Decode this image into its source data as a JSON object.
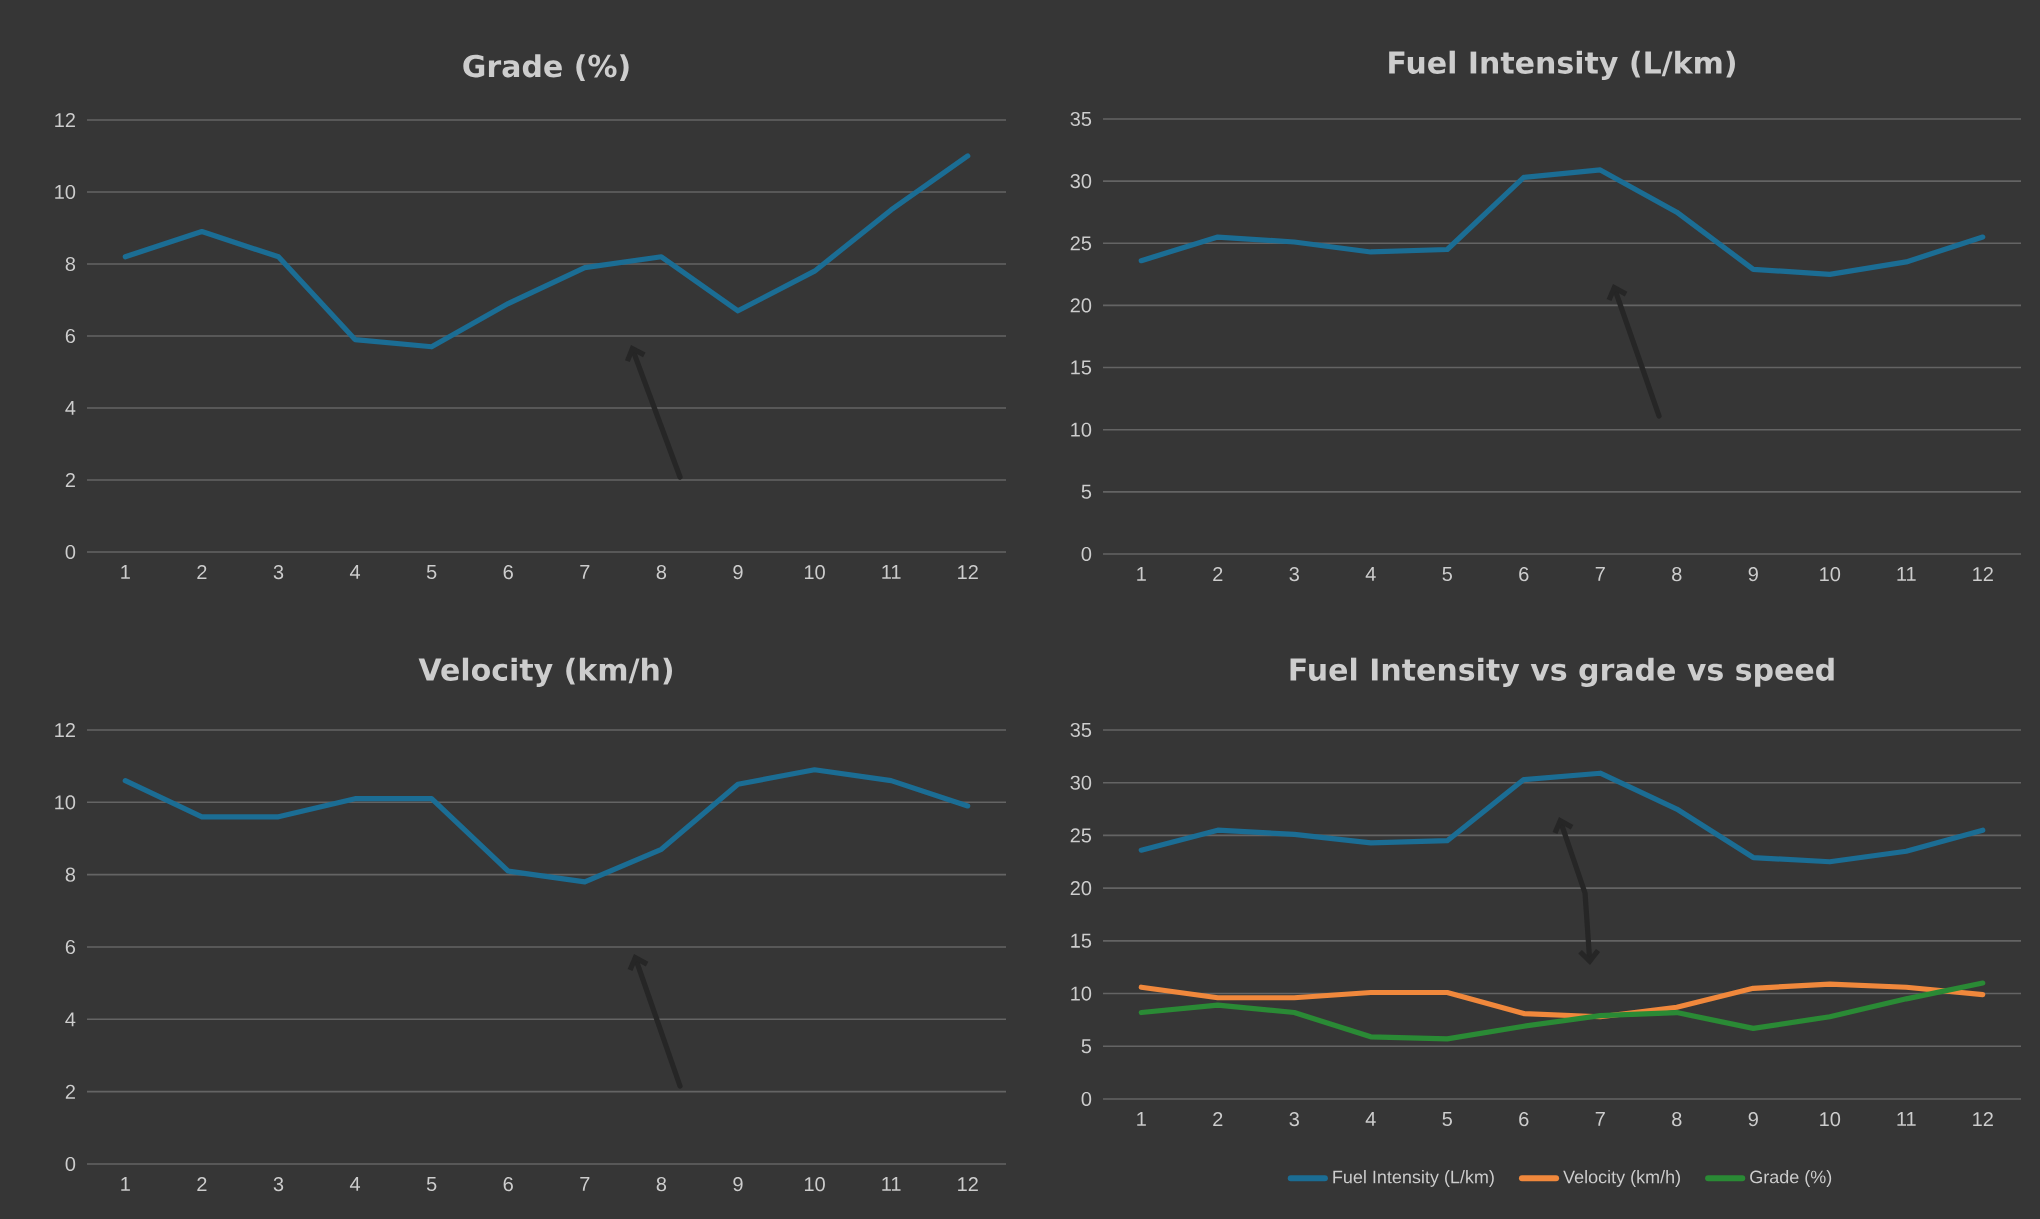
{
  "chart_data": [
    {
      "type": "line",
      "title": "Grade (%)",
      "categories": [
        "1",
        "2",
        "3",
        "4",
        "5",
        "6",
        "7",
        "8",
        "9",
        "10",
        "11",
        "12"
      ],
      "ylim": [
        0,
        12
      ],
      "yticks": [
        0,
        2,
        4,
        6,
        8,
        10,
        12
      ],
      "grid": "y",
      "series": [
        {
          "color": "#1b6d94",
          "values": [
            8.2,
            8.9,
            8.2,
            5.9,
            5.7,
            6.9,
            7.9,
            8.2,
            6.7,
            7.8,
            9.5,
            11.0
          ]
        }
      ]
    },
    {
      "type": "line",
      "title": "Fuel Intensity (L/km)",
      "categories": [
        "1",
        "2",
        "3",
        "4",
        "5",
        "6",
        "7",
        "8",
        "9",
        "10",
        "11",
        "12"
      ],
      "ylim": [
        0,
        35
      ],
      "yticks": [
        0,
        5,
        10,
        15,
        20,
        25,
        30,
        35
      ],
      "grid": "y",
      "series": [
        {
          "color": "#1b6d94",
          "values": [
            23.6,
            25.5,
            25.1,
            24.3,
            24.5,
            30.3,
            30.9,
            27.5,
            22.9,
            22.5,
            23.5,
            25.5
          ]
        }
      ]
    },
    {
      "type": "line",
      "title": "Velocity (km/h)",
      "categories": [
        "1",
        "2",
        "3",
        "4",
        "5",
        "6",
        "7",
        "8",
        "9",
        "10",
        "11",
        "12"
      ],
      "ylim": [
        0,
        12
      ],
      "yticks": [
        0,
        2,
        4,
        6,
        8,
        10,
        12
      ],
      "grid": "y",
      "series": [
        {
          "color": "#1b6d94",
          "values": [
            10.6,
            9.6,
            9.6,
            10.1,
            10.1,
            8.1,
            7.8,
            8.7,
            10.5,
            10.9,
            10.6,
            9.9
          ]
        }
      ]
    },
    {
      "type": "line",
      "title": "Fuel Intensity vs grade vs speed",
      "categories": [
        "1",
        "2",
        "3",
        "4",
        "5",
        "6",
        "7",
        "8",
        "9",
        "10",
        "11",
        "12"
      ],
      "ylim": [
        0,
        35
      ],
      "yticks": [
        0,
        5,
        10,
        15,
        20,
        25,
        30,
        35
      ],
      "grid": "y",
      "legend": "bottom",
      "series": [
        {
          "name": "Fuel Intensity (L/km)",
          "color": "#1b6d94",
          "values": [
            23.6,
            25.5,
            25.1,
            24.3,
            24.5,
            30.3,
            30.9,
            27.5,
            22.9,
            22.5,
            23.5,
            25.5
          ]
        },
        {
          "name": "Velocity (km/h)",
          "color": "#f0883c",
          "values": [
            10.6,
            9.6,
            9.6,
            10.1,
            10.1,
            8.1,
            7.8,
            8.7,
            10.5,
            10.9,
            10.6,
            9.9
          ]
        },
        {
          "name": "Grade (%)",
          "color": "#2a8a35",
          "values": [
            8.2,
            8.9,
            8.2,
            5.9,
            5.7,
            6.9,
            7.9,
            8.2,
            6.7,
            7.8,
            9.5,
            11.0
          ]
        }
      ]
    }
  ]
}
